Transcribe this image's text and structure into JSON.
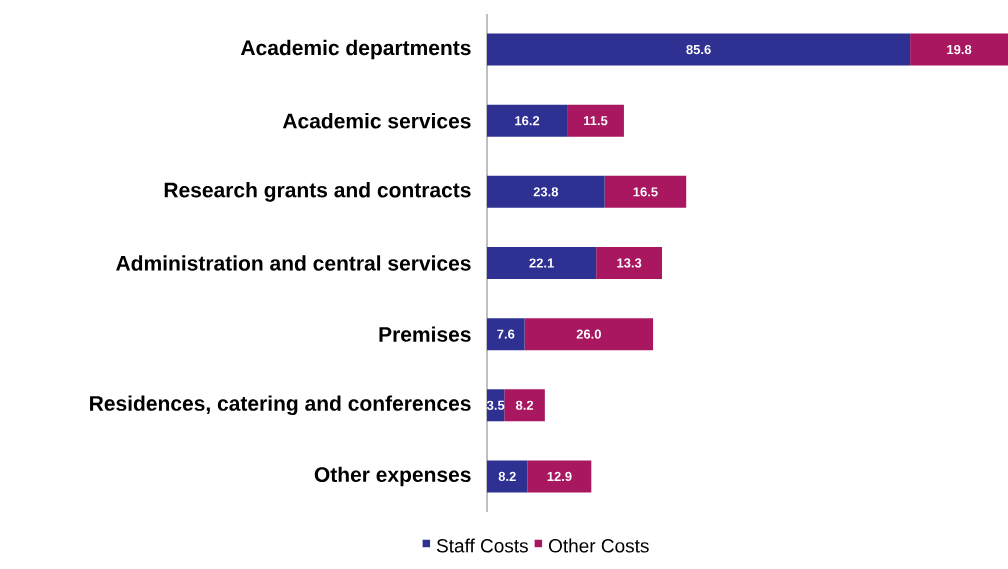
{
  "chart_data": {
    "type": "bar",
    "orientation": "horizontal",
    "stacked": true,
    "categories": [
      "Academic departments",
      "Academic services",
      "Research grants and contracts",
      "Administration and central services",
      "Premises",
      "Residences, catering and conferences",
      "Other expenses"
    ],
    "series": [
      {
        "name": "Staff Costs",
        "color": "#2e3192",
        "values": [
          85.6,
          16.2,
          23.8,
          22.1,
          7.6,
          3.5,
          8.2
        ],
        "value_labels": [
          "85.6",
          "16.2",
          "23.8",
          "22.1",
          "7.6",
          "3.5",
          "8.2"
        ]
      },
      {
        "name": "Other Costs",
        "color": "#a8175f",
        "values": [
          19.8,
          11.5,
          16.5,
          13.3,
          26.0,
          8.2,
          12.9
        ],
        "value_labels": [
          "19.8",
          "11.5",
          "16.5",
          "13.3",
          "26.0",
          "8.2",
          "12.9"
        ]
      }
    ],
    "legend": "bottom"
  }
}
